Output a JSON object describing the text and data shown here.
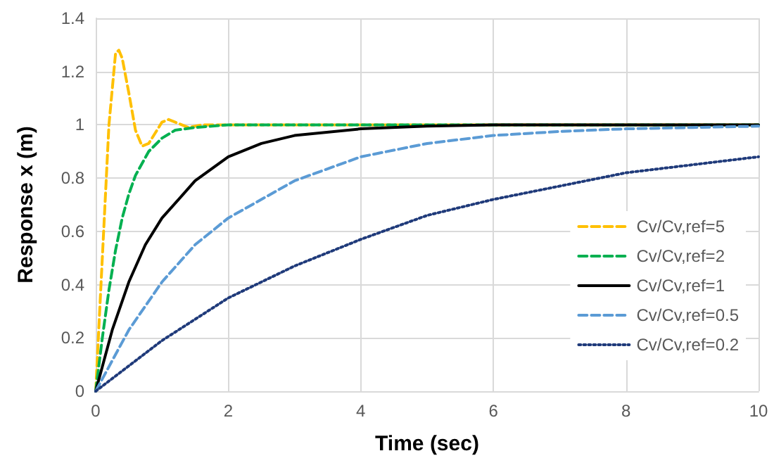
{
  "chart_data": {
    "type": "line",
    "xlabel": "Time (sec)",
    "ylabel": "Response x (m)",
    "xlim": [
      0,
      10
    ],
    "xticks": [
      0,
      2,
      4,
      6,
      8,
      10
    ],
    "ylim": [
      0,
      1.4
    ],
    "yticks": [
      0,
      0.2,
      0.4,
      0.6,
      0.8,
      1,
      1.2,
      1.4
    ],
    "grid": true,
    "legend": "right",
    "marker": "none",
    "series": [
      {
        "name": "Cv/Cv,ref=5",
        "color": "#ffc000",
        "line_style": "dashed",
        "x": [
          0,
          0.1,
          0.2,
          0.3,
          0.35,
          0.4,
          0.5,
          0.6,
          0.7,
          0.8,
          0.9,
          1,
          1.1,
          1.2,
          1.4,
          1.6,
          2,
          10
        ],
        "values": [
          0,
          0.5,
          1.0,
          1.27,
          1.28,
          1.25,
          1.12,
          0.98,
          0.92,
          0.93,
          0.97,
          1.01,
          1.02,
          1.01,
          0.99,
          1.0,
          1,
          1
        ]
      },
      {
        "name": "Cv/Cv,ref=2",
        "color": "#00b050",
        "line_style": "dashed",
        "x": [
          0,
          0.1,
          0.2,
          0.3,
          0.4,
          0.5,
          0.6,
          0.8,
          1,
          1.2,
          1.5,
          2,
          3,
          10
        ],
        "values": [
          0,
          0.2,
          0.38,
          0.53,
          0.65,
          0.74,
          0.81,
          0.9,
          0.95,
          0.98,
          0.99,
          1,
          1,
          1
        ]
      },
      {
        "name": "Cv/Cv,ref=1",
        "color": "#000000",
        "line_style": "solid",
        "x": [
          0,
          0.25,
          0.5,
          0.75,
          1,
          1.5,
          2,
          2.5,
          3,
          4,
          5,
          6,
          8,
          10
        ],
        "values": [
          0,
          0.23,
          0.41,
          0.55,
          0.65,
          0.79,
          0.88,
          0.93,
          0.96,
          0.985,
          0.995,
          1,
          1,
          1
        ]
      },
      {
        "name": "Cv/Cv,ref=0.5",
        "color": "#5b9bd5",
        "line_style": "dashed",
        "x": [
          0,
          0.5,
          1,
          1.5,
          2,
          3,
          4,
          5,
          6,
          7,
          8,
          9,
          10
        ],
        "values": [
          0,
          0.23,
          0.41,
          0.55,
          0.65,
          0.79,
          0.88,
          0.93,
          0.96,
          0.975,
          0.985,
          0.99,
          0.995
        ]
      },
      {
        "name": "Cv/Cv,ref=0.2",
        "color": "#1f3a7a",
        "line_style": "dotted",
        "x": [
          0,
          1,
          2,
          3,
          4,
          5,
          6,
          7,
          8,
          9,
          10
        ],
        "values": [
          0,
          0.19,
          0.35,
          0.47,
          0.57,
          0.66,
          0.72,
          0.77,
          0.82,
          0.85,
          0.88
        ]
      }
    ]
  }
}
